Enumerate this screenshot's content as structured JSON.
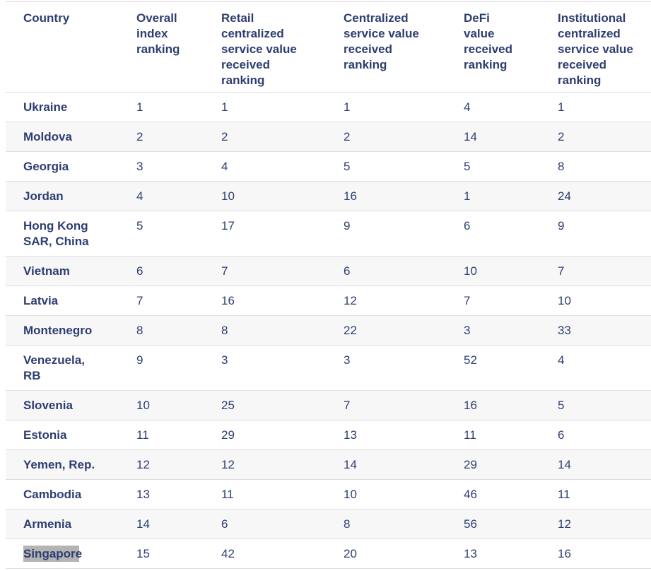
{
  "colors": {
    "heading_text": "#2e3e70",
    "body_text": "#2e3e70",
    "row_stripe": "#f7f7f8",
    "row_border": "#dedee0",
    "selection_highlight": "#b4b4b4",
    "background": "#ffffff"
  },
  "selection": {
    "note_text_selected": "Singapor",
    "unselected_remainder": "e"
  },
  "chart_data": {
    "type": "table",
    "title": "",
    "columns": [
      {
        "key": "country",
        "label": "Country",
        "display": "Country"
      },
      {
        "key": "overall",
        "label": "Overall index ranking",
        "display": "Overall\nindex\nranking"
      },
      {
        "key": "retail",
        "label": "Retail centralized service value received ranking",
        "display": "Retail\ncentralized\nservice value\nreceived\nranking"
      },
      {
        "key": "centralized",
        "label": "Centralized service value received ranking",
        "display": "Centralized\nservice value\nreceived\nranking"
      },
      {
        "key": "defi",
        "label": "DeFi value received ranking",
        "display": "DeFi\nvalue\nreceived\nranking"
      },
      {
        "key": "institutional",
        "label": "Institutional centralized service value received ranking",
        "display": "Institutional\ncentralized\nservice value\nreceived\nranking"
      }
    ],
    "rows": [
      {
        "country": "Ukraine",
        "overall": "1",
        "retail": "1",
        "centralized": "1",
        "defi": "4",
        "institutional": "1"
      },
      {
        "country": "Moldova",
        "overall": "2",
        "retail": "2",
        "centralized": "2",
        "defi": "14",
        "institutional": "2"
      },
      {
        "country": "Georgia",
        "overall": "3",
        "retail": "4",
        "centralized": "5",
        "defi": "5",
        "institutional": "8"
      },
      {
        "country": "Jordan",
        "overall": "4",
        "retail": "10",
        "centralized": "16",
        "defi": "1",
        "institutional": "24"
      },
      {
        "country": "Hong Kong SAR, China",
        "country_display": "Hong Kong\nSAR, China",
        "overall": "5",
        "retail": "17",
        "centralized": "9",
        "defi": "6",
        "institutional": "9"
      },
      {
        "country": "Vietnam",
        "overall": "6",
        "retail": "7",
        "centralized": "6",
        "defi": "10",
        "institutional": "7"
      },
      {
        "country": "Latvia",
        "overall": "7",
        "retail": "16",
        "centralized": "12",
        "defi": "7",
        "institutional": "10"
      },
      {
        "country": "Montenegro",
        "overall": "8",
        "retail": "8",
        "centralized": "22",
        "defi": "3",
        "institutional": "33"
      },
      {
        "country": "Venezuela, RB",
        "country_display": "Venezuela,\nRB",
        "overall": "9",
        "retail": "3",
        "centralized": "3",
        "defi": "52",
        "institutional": "4"
      },
      {
        "country": "Slovenia",
        "overall": "10",
        "retail": "25",
        "centralized": "7",
        "defi": "16",
        "institutional": "5"
      },
      {
        "country": "Estonia",
        "overall": "11",
        "retail": "29",
        "centralized": "13",
        "defi": "11",
        "institutional": "6"
      },
      {
        "country": "Yemen, Rep.",
        "overall": "12",
        "retail": "12",
        "centralized": "14",
        "defi": "29",
        "institutional": "14"
      },
      {
        "country": "Cambodia",
        "overall": "13",
        "retail": "11",
        "centralized": "10",
        "defi": "46",
        "institutional": "11"
      },
      {
        "country": "Armenia",
        "overall": "14",
        "retail": "6",
        "centralized": "8",
        "defi": "56",
        "institutional": "12"
      },
      {
        "country": "Singapore",
        "country_highlighted": "Singapor",
        "country_rest": "e",
        "overall": "15",
        "retail": "42",
        "centralized": "20",
        "defi": "13",
        "institutional": "16"
      }
    ]
  }
}
